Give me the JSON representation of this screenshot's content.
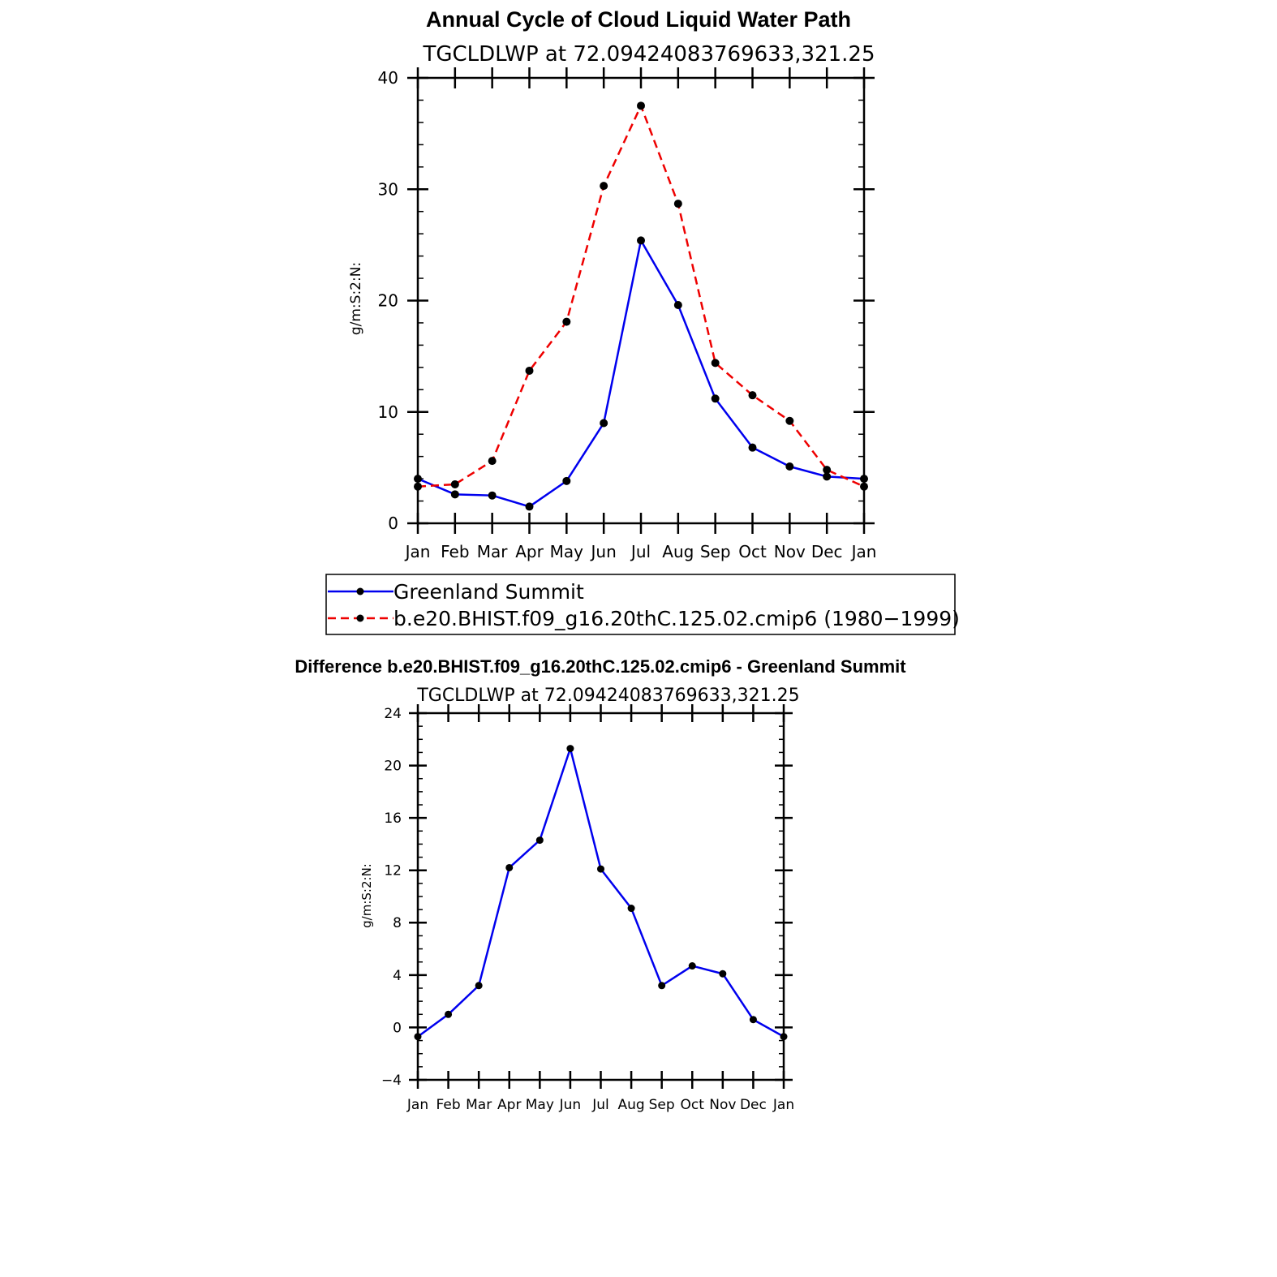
{
  "chart_data": [
    {
      "type": "line",
      "title": "Annual Cycle of Cloud Liquid Water Path",
      "subtitle": "TGCLDLWP at 72.09424083769633,321.25",
      "ylabel": "g/m:S:2:N:",
      "ylim": [
        0,
        40
      ],
      "yticks": [
        0,
        10,
        20,
        30,
        40
      ],
      "categories": [
        "Jan",
        "Feb",
        "Mar",
        "Apr",
        "May",
        "Jun",
        "Jul",
        "Aug",
        "Sep",
        "Oct",
        "Nov",
        "Dec",
        "Jan"
      ],
      "series": [
        {
          "name": "Greenland Summit",
          "color": "#0000ee",
          "dash": "solid",
          "values": [
            4.0,
            2.6,
            2.5,
            1.5,
            3.8,
            9.0,
            25.4,
            19.6,
            11.2,
            6.8,
            5.1,
            4.2,
            4.0
          ]
        },
        {
          "name": "b.e20.BHIST.f09_g16.20thC.125.02.cmip6 (1980−1999)",
          "color": "#ee0000",
          "dash": "dashed",
          "values": [
            3.3,
            3.5,
            5.6,
            13.7,
            18.1,
            30.3,
            37.5,
            28.7,
            14.4,
            11.5,
            9.2,
            4.8,
            3.3
          ]
        }
      ],
      "legend": "below"
    },
    {
      "type": "line",
      "title": "Difference b.e20.BHIST.f09_g16.20thC.125.02.cmip6 - Greenland Summit",
      "subtitle": "TGCLDLWP at 72.09424083769633,321.25",
      "ylabel": "g/m:S:2:N:",
      "ylim": [
        -4,
        24
      ],
      "yticks": [
        -4,
        0,
        4,
        8,
        12,
        16,
        20,
        24
      ],
      "ytick_labels": [
        "−4",
        "0",
        "4",
        "8",
        "12",
        "16",
        "20",
        "24"
      ],
      "categories": [
        "Jan",
        "Feb",
        "Mar",
        "Apr",
        "May",
        "Jun",
        "Jul",
        "Aug",
        "Sep",
        "Oct",
        "Nov",
        "Dec",
        "Jan"
      ],
      "series": [
        {
          "color": "#0000ee",
          "dash": "solid",
          "values": [
            -0.7,
            1.0,
            3.2,
            12.2,
            14.3,
            21.3,
            12.1,
            9.1,
            3.2,
            4.7,
            4.1,
            0.6,
            -0.7
          ]
        }
      ]
    }
  ]
}
